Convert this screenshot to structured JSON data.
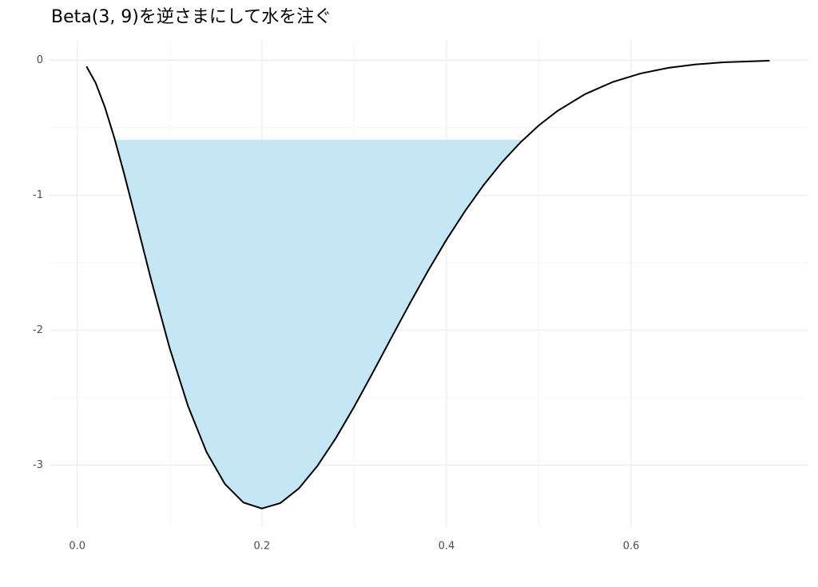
{
  "chart_data": {
    "type": "line",
    "title": "Beta(3, 9)を逆さまにして水を注ぐ",
    "x": [
      0.01,
      0.02,
      0.03,
      0.04,
      0.05,
      0.06,
      0.08,
      0.1,
      0.12,
      0.14,
      0.16,
      0.18,
      0.2,
      0.22,
      0.24,
      0.26,
      0.28,
      0.3,
      0.32,
      0.34,
      0.36,
      0.38,
      0.4,
      0.42,
      0.44,
      0.46,
      0.48,
      0.5,
      0.52,
      0.55,
      0.58,
      0.61,
      0.64,
      0.67,
      0.7,
      0.75
    ],
    "series": [
      {
        "color": "#000000",
        "values": [
          -0.046,
          -0.169,
          -0.349,
          -0.571,
          -0.821,
          -1.086,
          -1.626,
          -2.131,
          -2.563,
          -2.903,
          -3.141,
          -3.278,
          -3.322,
          -3.282,
          -3.174,
          -3.008,
          -2.802,
          -2.568,
          -2.317,
          -2.06,
          -1.806,
          -1.561,
          -1.33,
          -1.119,
          -0.927,
          -0.757,
          -0.61,
          -0.483,
          -0.377,
          -0.252,
          -0.162,
          -0.099,
          -0.057,
          -0.031,
          -0.016,
          -0.004
        ]
      }
    ],
    "water_level": -0.59,
    "fill_color": "#c2e5f4",
    "xlim": [
      -0.03,
      0.792
    ],
    "ylim": [
      -3.46,
      0.15
    ],
    "xticks": [
      {
        "value": 0,
        "label": "0.0"
      },
      0.2,
      0.4,
      0.6
    ],
    "yticks": [
      -3,
      -2,
      -1,
      0
    ],
    "grid": true,
    "minor_grid": true
  }
}
